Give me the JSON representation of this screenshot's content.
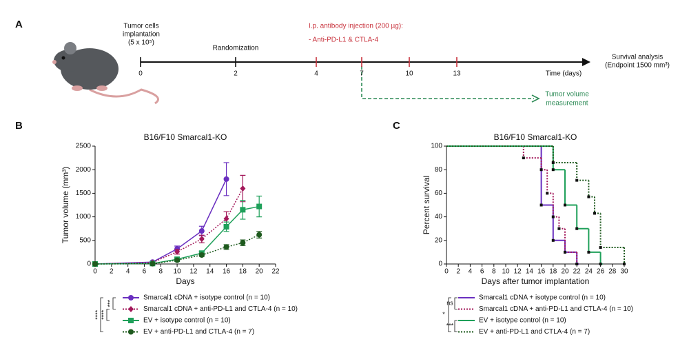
{
  "panels": [
    "A",
    "B",
    "C"
  ],
  "timeline": {
    "ticks": [
      "0",
      "2",
      "4",
      "7",
      "10",
      "13"
    ],
    "implant": [
      "Tumor cells",
      "implantation",
      "(5 x 10⁵)"
    ],
    "randomization": "Randomization",
    "injection": [
      "I.p. antibody injection (200 µg):",
      "- Anti-PD-L1 & CTLA-4"
    ],
    "axis_label": "Time (days)",
    "endpoint": [
      "Survival analysis",
      "(Endpoint 1500 mm³)"
    ],
    "measurement": [
      "Tumor volume",
      "measurement"
    ]
  },
  "chart_data": [
    {
      "type": "line",
      "title": "B16/F10 Smarcal1-KO",
      "xlabel": "Days",
      "ylabel": "Tumor volume (mm³)",
      "xlim": [
        0,
        22
      ],
      "xticks": [
        0,
        2,
        4,
        6,
        8,
        10,
        12,
        14,
        16,
        18,
        20,
        22
      ],
      "ylim": [
        0,
        2500
      ],
      "yticks": [
        0,
        500,
        1000,
        1500,
        2000,
        2500
      ],
      "series": [
        {
          "name": "Smarcal1 cDNA + isotype control (n = 10)",
          "color": "#6a2fc0",
          "dash": false,
          "marker": "circle",
          "x": [
            0,
            7,
            10,
            13,
            16
          ],
          "values": [
            0,
            40,
            320,
            700,
            1800
          ],
          "errors": [
            0,
            10,
            60,
            100,
            350
          ]
        },
        {
          "name": "Smarcal1 cDNA + anti-PD-L1 and CTLA-4 (n = 10)",
          "color": "#a3185a",
          "dash": true,
          "marker": "diamond",
          "x": [
            0,
            7,
            10,
            13,
            16,
            18
          ],
          "values": [
            0,
            30,
            260,
            530,
            960,
            1600
          ],
          "errors": [
            0,
            10,
            50,
            80,
            150,
            280
          ]
        },
        {
          "name": "EV + isotype control (n = 10)",
          "color": "#1fa05a",
          "dash": false,
          "marker": "square",
          "x": [
            0,
            7,
            10,
            13,
            16,
            18,
            20
          ],
          "values": [
            0,
            10,
            100,
            230,
            790,
            1150,
            1220
          ],
          "errors": [
            0,
            5,
            30,
            40,
            100,
            200,
            220
          ]
        },
        {
          "name": "EV + anti-PD-L1 and CTLA-4 (n = 7)",
          "color": "#1e5a1e",
          "dash": true,
          "marker": "circle",
          "x": [
            0,
            7,
            10,
            13,
            16,
            18,
            20
          ],
          "values": [
            0,
            5,
            80,
            190,
            360,
            450,
            620
          ],
          "errors": [
            0,
            5,
            20,
            30,
            50,
            60,
            70
          ]
        }
      ],
      "annotations": [
        "***",
        "****",
        "****"
      ]
    },
    {
      "type": "step",
      "title": "B16/F10 Smarcal1-KO",
      "xlabel": "Days after tumor implantation",
      "ylabel": "Percent survival",
      "xlim": [
        0,
        30
      ],
      "xticks": [
        0,
        2,
        4,
        6,
        8,
        10,
        12,
        14,
        16,
        18,
        20,
        22,
        24,
        26,
        28,
        30
      ],
      "ylim": [
        0,
        100
      ],
      "yticks": [
        0,
        20,
        40,
        60,
        80,
        100
      ],
      "series": [
        {
          "name": "Smarcal1 cDNA + isotype control (n = 10)",
          "color": "#6a2fc0",
          "dash": false,
          "x": [
            0,
            16,
            18,
            20,
            22
          ],
          "values": [
            100,
            50,
            20,
            10,
            0
          ]
        },
        {
          "name": "Smarcal1 cDNA + anti-PD-L1 and CTLA-4 (n = 10)",
          "color": "#a3185a",
          "dash": true,
          "x": [
            0,
            13,
            16,
            17,
            18,
            19,
            20,
            22
          ],
          "values": [
            100,
            90,
            80,
            60,
            40,
            30,
            10,
            0
          ]
        },
        {
          "name": "EV + isotype control (n = 10)",
          "color": "#1fa05a",
          "dash": false,
          "x": [
            0,
            18,
            20,
            22,
            24,
            26
          ],
          "values": [
            100,
            80,
            50,
            30,
            10,
            0
          ]
        },
        {
          "name": "EV + anti-PD-L1 and CTLA-4 (n = 7)",
          "color": "#1e5a1e",
          "dash": true,
          "x": [
            0,
            18,
            22,
            24,
            25,
            26,
            30
          ],
          "values": [
            100,
            86,
            71,
            57,
            43,
            14,
            0
          ]
        }
      ],
      "annotations": [
        "ns",
        "***",
        "*"
      ]
    }
  ]
}
